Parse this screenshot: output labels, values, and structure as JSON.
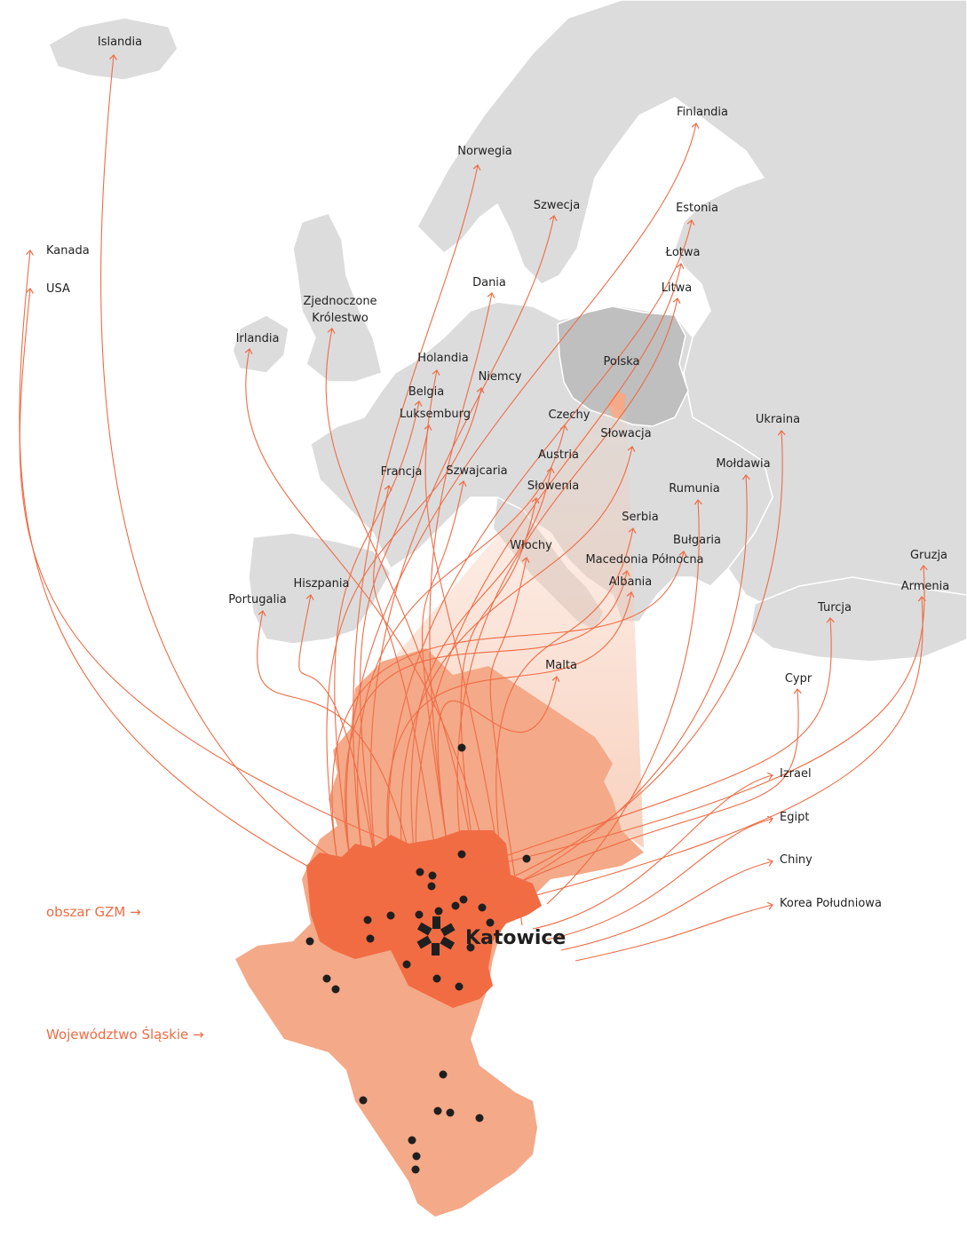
{
  "colors": {
    "land": "#dcdcdc",
    "land_border": "#ffffff",
    "poland": "#bfbfbf",
    "silesia": "#f4a988",
    "gzm": "#f26c43",
    "arrow": "#ef6c45",
    "beam": "#f7c9b3",
    "dot": "#1f1f1f"
  },
  "side_labels": {
    "gzm": "obszar GZM →",
    "voivodeship": "Województwo Śląskie →"
  },
  "city": {
    "name": "Katowice",
    "icon": "katowice-star-logo-icon"
  },
  "countries": [
    {
      "id": "islandia",
      "name": "Islandia"
    },
    {
      "id": "finlandia",
      "name": "Finlandia"
    },
    {
      "id": "norwegia",
      "name": "Norwegia"
    },
    {
      "id": "szwecja",
      "name": "Szwecja"
    },
    {
      "id": "estonia",
      "name": "Estonia"
    },
    {
      "id": "kanada",
      "name": "Kanada"
    },
    {
      "id": "lotwa",
      "name": "Łotwa"
    },
    {
      "id": "usa",
      "name": "USA"
    },
    {
      "id": "dania",
      "name": "Dania"
    },
    {
      "id": "litwa",
      "name": "Litwa"
    },
    {
      "id": "zjednoczone",
      "name": "Zjednoczone\nKrólestwo"
    },
    {
      "id": "irlandia",
      "name": "Irlandia"
    },
    {
      "id": "holandia",
      "name": "Holandia"
    },
    {
      "id": "polska",
      "name": "Polska"
    },
    {
      "id": "niemcy",
      "name": "Niemcy"
    },
    {
      "id": "belgia",
      "name": "Belgia"
    },
    {
      "id": "czechy",
      "name": "Czechy"
    },
    {
      "id": "luksemburg",
      "name": "Luksemburg"
    },
    {
      "id": "ukraina",
      "name": "Ukraina"
    },
    {
      "id": "slowacja",
      "name": "Słowacja"
    },
    {
      "id": "austria",
      "name": "Austria"
    },
    {
      "id": "francja",
      "name": "Francja"
    },
    {
      "id": "szwajcaria",
      "name": "Szwajcaria"
    },
    {
      "id": "moldawia",
      "name": "Mołdawia"
    },
    {
      "id": "slowenia",
      "name": "Słowenia"
    },
    {
      "id": "rumunia",
      "name": "Rumunia"
    },
    {
      "id": "serbia",
      "name": "Serbia"
    },
    {
      "id": "wlochy",
      "name": "Włochy"
    },
    {
      "id": "bulgaria",
      "name": "Bułgaria"
    },
    {
      "id": "macedonia",
      "name": "Macedonia Północna"
    },
    {
      "id": "gruzja",
      "name": "Gruzja"
    },
    {
      "id": "hiszpania",
      "name": "Hiszpania"
    },
    {
      "id": "albania",
      "name": "Albania"
    },
    {
      "id": "armenia",
      "name": "Armenia"
    },
    {
      "id": "portugalia",
      "name": "Portugalia"
    },
    {
      "id": "turcja",
      "name": "Turcja"
    },
    {
      "id": "malta",
      "name": "Malta"
    },
    {
      "id": "cypr",
      "name": "Cypr"
    },
    {
      "id": "izrael",
      "name": "Izrael"
    },
    {
      "id": "egipt",
      "name": "Egipt"
    },
    {
      "id": "chiny",
      "name": "Chiny"
    },
    {
      "id": "korea",
      "name": "Korea Południowa"
    }
  ]
}
